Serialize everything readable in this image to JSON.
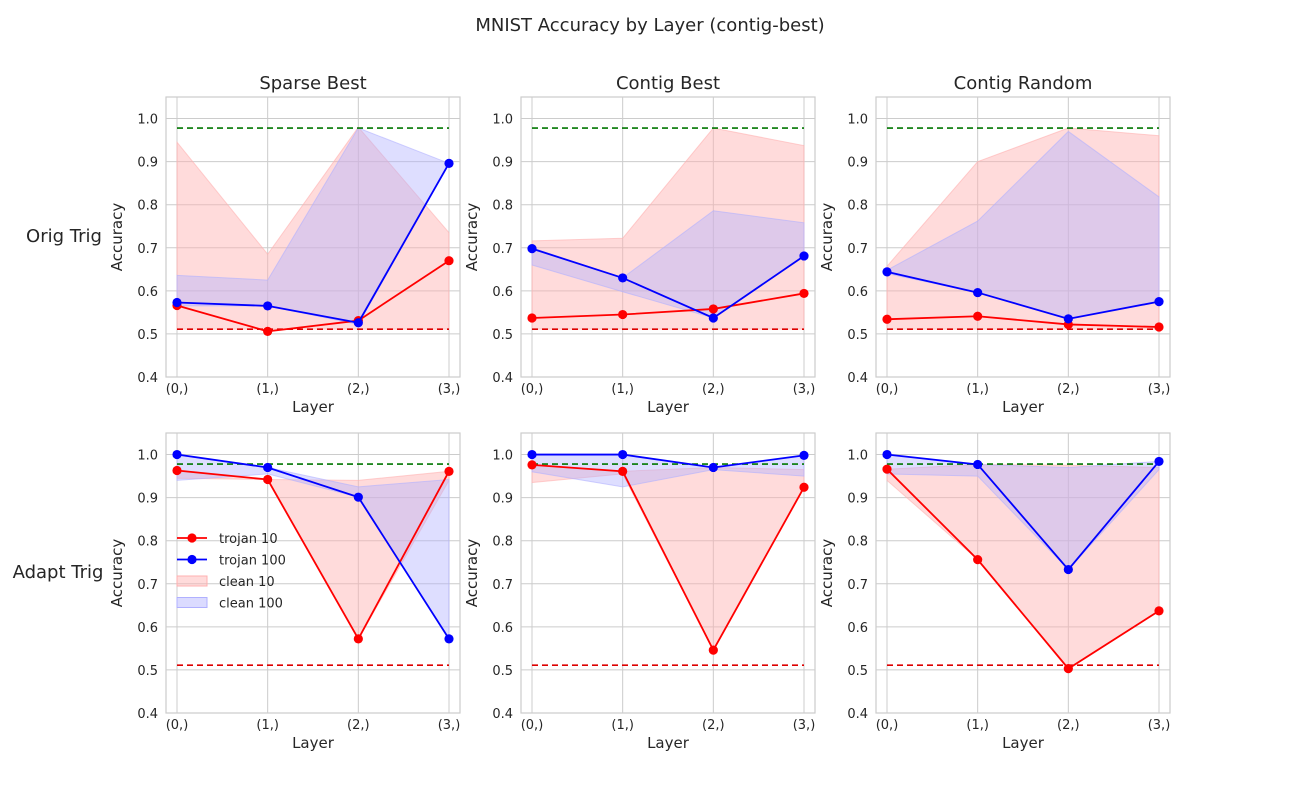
{
  "figure": {
    "title": "MNIST Accuracy by Layer (contig-best)",
    "row_labels": [
      "Orig Trig",
      "Adapt Trig"
    ],
    "colors": {
      "trojan10": "#ff0000",
      "trojan100": "#0000ff",
      "clean10_fill": "#ffb0b0",
      "clean100_fill": "#b0b0ff",
      "ref_high": "#007700",
      "ref_low": "#dd0000"
    },
    "legend": {
      "panel_index": 3,
      "location": "center-left",
      "entries": [
        "trojan 10",
        "trojan 100",
        "clean 10",
        "clean 100"
      ]
    }
  },
  "chart_data": [
    {
      "type": "line",
      "title": "Sparse Best",
      "row": "Orig Trig",
      "xlabel": "Layer",
      "ylabel": "Accuracy",
      "categories": [
        "(0,)",
        "(1,)",
        "(2,)",
        "(3,)"
      ],
      "ylim": [
        0.4,
        1.05
      ],
      "yticks": [
        "0.4",
        "0.5",
        "0.6",
        "0.7",
        "0.8",
        "0.9",
        "1.0"
      ],
      "grid": true,
      "reference_lines": {
        "high": 0.978,
        "low": 0.511
      },
      "series": [
        {
          "name": "trojan 10",
          "values": [
            0.566,
            0.506,
            0.531,
            0.67
          ]
        },
        {
          "name": "trojan 100",
          "values": [
            0.573,
            0.565,
            0.526,
            0.896
          ]
        }
      ],
      "bands": [
        {
          "name": "clean 10",
          "upper": [
            0.945,
            0.685,
            0.98,
            0.735
          ],
          "lower": [
            0.511,
            0.511,
            0.511,
            0.511
          ]
        },
        {
          "name": "clean 100",
          "upper": [
            0.636,
            0.625,
            0.978,
            0.896
          ],
          "lower": [
            0.565,
            0.565,
            0.522,
            0.896
          ]
        }
      ]
    },
    {
      "type": "line",
      "title": "Contig Best",
      "row": "Orig Trig",
      "xlabel": "Layer",
      "ylabel": "Accuracy",
      "categories": [
        "(0,)",
        "(1,)",
        "(2,)",
        "(3,)"
      ],
      "ylim": [
        0.4,
        1.05
      ],
      "yticks": [
        "0.4",
        "0.5",
        "0.6",
        "0.7",
        "0.8",
        "0.9",
        "1.0"
      ],
      "grid": true,
      "reference_lines": {
        "high": 0.978,
        "low": 0.511
      },
      "series": [
        {
          "name": "trojan 10",
          "values": [
            0.537,
            0.545,
            0.558,
            0.594
          ]
        },
        {
          "name": "trojan 100",
          "values": [
            0.698,
            0.63,
            0.537,
            0.681
          ]
        }
      ],
      "bands": [
        {
          "name": "clean 10",
          "upper": [
            0.716,
            0.722,
            0.978,
            0.937
          ],
          "lower": [
            0.511,
            0.511,
            0.511,
            0.511
          ]
        },
        {
          "name": "clean 100",
          "upper": [
            0.7,
            0.63,
            0.786,
            0.758
          ],
          "lower": [
            0.66,
            0.598,
            0.537,
            0.681
          ]
        }
      ]
    },
    {
      "type": "line",
      "title": "Contig Random",
      "row": "Orig Trig",
      "xlabel": "Layer",
      "ylabel": "Accuracy",
      "categories": [
        "(0,)",
        "(1,)",
        "(2,)",
        "(3,)"
      ],
      "ylim": [
        0.4,
        1.05
      ],
      "yticks": [
        "0.4",
        "0.5",
        "0.6",
        "0.7",
        "0.8",
        "0.9",
        "1.0"
      ],
      "grid": true,
      "reference_lines": {
        "high": 0.978,
        "low": 0.511
      },
      "series": [
        {
          "name": "trojan 10",
          "values": [
            0.534,
            0.541,
            0.522,
            0.516
          ]
        },
        {
          "name": "trojan 100",
          "values": [
            0.644,
            0.596,
            0.535,
            0.575
          ]
        }
      ],
      "bands": [
        {
          "name": "clean 10",
          "upper": [
            0.657,
            0.9,
            0.978,
            0.96
          ],
          "lower": [
            0.511,
            0.511,
            0.511,
            0.511
          ]
        },
        {
          "name": "clean 100",
          "upper": [
            0.648,
            0.762,
            0.97,
            0.818
          ],
          "lower": [
            0.64,
            0.596,
            0.535,
            0.575
          ]
        }
      ]
    },
    {
      "type": "line",
      "title": "",
      "row": "Adapt Trig",
      "xlabel": "Layer",
      "ylabel": "Accuracy",
      "categories": [
        "(0,)",
        "(1,)",
        "(2,)",
        "(3,)"
      ],
      "ylim": [
        0.4,
        1.05
      ],
      "yticks": [
        "0.4",
        "0.5",
        "0.6",
        "0.7",
        "0.8",
        "0.9",
        "1.0"
      ],
      "grid": true,
      "reference_lines": {
        "high": 0.978,
        "low": 0.511
      },
      "series": [
        {
          "name": "trojan 10",
          "values": [
            0.963,
            0.942,
            0.572,
            0.961
          ]
        },
        {
          "name": "trojan 100",
          "values": [
            1.0,
            0.97,
            0.901,
            0.572
          ]
        }
      ],
      "bands": [
        {
          "name": "clean 10",
          "upper": [
            0.963,
            0.942,
            0.94,
            0.961
          ],
          "lower": [
            0.945,
            0.942,
            0.572,
            0.94
          ]
        },
        {
          "name": "clean 100",
          "upper": [
            0.999,
            0.97,
            0.925,
            0.942
          ],
          "lower": [
            0.94,
            0.955,
            0.901,
            0.572
          ]
        }
      ]
    },
    {
      "type": "line",
      "title": "",
      "row": "Adapt Trig",
      "xlabel": "Layer",
      "ylabel": "Accuracy",
      "categories": [
        "(0,)",
        "(1,)",
        "(2,)",
        "(3,)"
      ],
      "ylim": [
        0.4,
        1.05
      ],
      "yticks": [
        "0.4",
        "0.5",
        "0.6",
        "0.7",
        "0.8",
        "0.9",
        "1.0"
      ],
      "grid": true,
      "reference_lines": {
        "high": 0.978,
        "low": 0.511
      },
      "series": [
        {
          "name": "trojan 10",
          "values": [
            0.976,
            0.961,
            0.546,
            0.924
          ]
        },
        {
          "name": "trojan 100",
          "values": [
            1.0,
            1.0,
            0.97,
            0.998
          ]
        }
      ],
      "bands": [
        {
          "name": "clean 10",
          "upper": [
            0.976,
            0.961,
            0.97,
            0.965
          ],
          "lower": [
            0.935,
            0.955,
            0.546,
            0.924
          ]
        },
        {
          "name": "clean 100",
          "upper": [
            1.0,
            1.0,
            0.97,
            0.998
          ],
          "lower": [
            0.96,
            0.925,
            0.965,
            0.95
          ]
        }
      ]
    },
    {
      "type": "line",
      "title": "",
      "row": "Adapt Trig",
      "xlabel": "Layer",
      "ylabel": "Accuracy",
      "categories": [
        "(0,)",
        "(1,)",
        "(2,)",
        "(3,)"
      ],
      "ylim": [
        0.4,
        1.05
      ],
      "yticks": [
        "0.4",
        "0.5",
        "0.6",
        "0.7",
        "0.8",
        "0.9",
        "1.0"
      ],
      "grid": true,
      "reference_lines": {
        "high": 0.978,
        "low": 0.511
      },
      "series": [
        {
          "name": "trojan 10",
          "values": [
            0.966,
            0.756,
            0.503,
            0.637
          ]
        },
        {
          "name": "trojan 100",
          "values": [
            1.0,
            0.977,
            0.733,
            0.984
          ]
        }
      ],
      "bands": [
        {
          "name": "clean 10",
          "upper": [
            0.966,
            0.977,
            0.975,
            0.97
          ],
          "lower": [
            0.94,
            0.756,
            0.503,
            0.637
          ]
        },
        {
          "name": "clean 100",
          "upper": [
            1.0,
            0.977,
            0.97,
            0.984
          ],
          "lower": [
            0.955,
            0.95,
            0.733,
            0.965
          ]
        }
      ]
    }
  ]
}
